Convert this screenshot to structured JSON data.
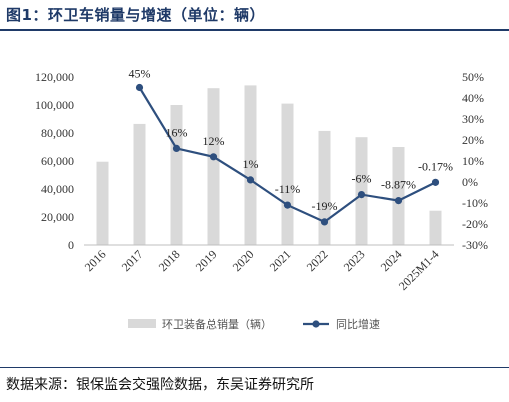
{
  "page": {
    "title": "图1：环卫车销量与增速（单位：辆）",
    "source": "数据来源：银保监会交强险数据，东吴证券研究所"
  },
  "colors": {
    "bar": "#d9d9d9",
    "line": "#2e4f7e",
    "axis": "#bfbfbf",
    "title": "#1f3a68"
  },
  "chart_data": {
    "type": "bar",
    "categories": [
      "2016",
      "2017",
      "2018",
      "2019",
      "2020",
      "2021",
      "2022",
      "2023",
      "2024",
      "2025M1-4"
    ],
    "series": [
      {
        "name": "环卫装备总销量（辆）",
        "type": "bar",
        "axis": "left",
        "values": [
          59500,
          86500,
          100000,
          112000,
          114000,
          101000,
          81500,
          77000,
          70000,
          24500
        ]
      },
      {
        "name": "同比增速",
        "type": "line",
        "axis": "right",
        "values": [
          null,
          45,
          16,
          12,
          1,
          -11,
          -19,
          -6,
          -8.87,
          -0.17
        ],
        "labels": [
          "",
          "45%",
          "16%",
          "12%",
          "1%",
          "-11%",
          "-19%",
          "-6%",
          "-8.87%",
          "-0.17%"
        ]
      }
    ],
    "left_axis": {
      "min": 0,
      "max": 120000,
      "step": 20000,
      "ticks": [
        "0",
        "20,000",
        "40,000",
        "60,000",
        "80,000",
        "100,000",
        "120,000"
      ]
    },
    "right_axis": {
      "min": -30,
      "max": 50,
      "step": 10,
      "ticks": [
        "-30%",
        "-20%",
        "-10%",
        "0%",
        "10%",
        "20%",
        "30%",
        "40%",
        "50%"
      ]
    },
    "grid": false,
    "legend_position": "bottom"
  }
}
